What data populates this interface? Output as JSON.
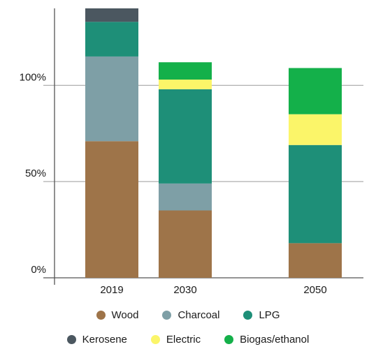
{
  "chart_data": {
    "type": "bar",
    "stacked": true,
    "categories": [
      "2019",
      "2030",
      "2050"
    ],
    "y_ticks": [
      0,
      50,
      100
    ],
    "y_tick_labels": [
      "0%",
      "50%",
      "100%"
    ],
    "ylim": [
      0,
      140
    ],
    "grid": true,
    "legend_position": "bottom",
    "series": [
      {
        "name": "Wood",
        "color": "#9e7449",
        "values": [
          71,
          35,
          18
        ]
      },
      {
        "name": "Charcoal",
        "color": "#7e9fa6",
        "values": [
          44,
          14,
          0
        ]
      },
      {
        "name": "LPG",
        "color": "#1e8f78",
        "values": [
          18,
          49,
          51
        ]
      },
      {
        "name": "Kerosene",
        "color": "#4b5760",
        "values": [
          7,
          0,
          0
        ]
      },
      {
        "name": "Electric",
        "color": "#fbf569",
        "values": [
          0,
          5,
          16
        ]
      },
      {
        "name": "Biogas/ethanol",
        "color": "#14b04a",
        "values": [
          0,
          9,
          24
        ]
      }
    ]
  }
}
